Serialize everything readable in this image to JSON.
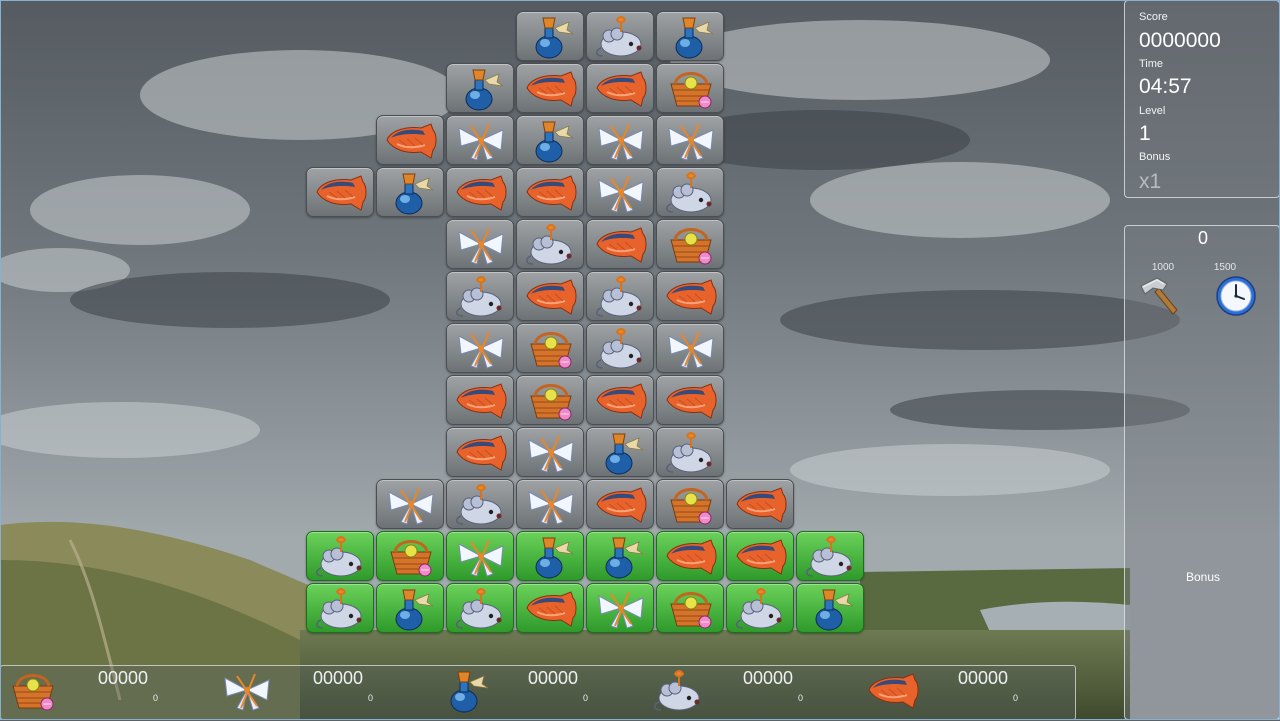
{
  "stats": {
    "score_label": "Score",
    "score_value": "0000000",
    "time_label": "Time",
    "time_value": "04:57",
    "level_label": "Level",
    "level_value": "1",
    "bonus_label": "Bonus",
    "bonus_value": "x1"
  },
  "tools": {
    "bonus_count": "0",
    "hammer": {
      "icon": "hammer-icon",
      "cost": "1000"
    },
    "clock": {
      "icon": "clock-icon",
      "cost": "1500"
    },
    "bonus_label": "Bonus"
  },
  "goals": [
    {
      "item": "basket",
      "score": "00000",
      "count": "0"
    },
    {
      "item": "bow",
      "score": "00000",
      "count": "0"
    },
    {
      "item": "bottle",
      "score": "00000",
      "count": "0"
    },
    {
      "item": "mouse",
      "score": "00000",
      "count": "0"
    },
    {
      "item": "fish",
      "score": "00000",
      "count": "0"
    }
  ],
  "board": {
    "columns": 8,
    "rows": 12,
    "cells": [
      [
        "",
        "",
        "",
        "bottle",
        "mouse",
        "bottle",
        "",
        ""
      ],
      [
        "",
        "",
        "bottle",
        "fish",
        "fish",
        "basket",
        "",
        ""
      ],
      [
        "",
        "fish",
        "bow",
        "bottle",
        "bow",
        "bow",
        "",
        ""
      ],
      [
        "fish",
        "bottle",
        "fish",
        "fish",
        "bow",
        "mouse",
        "",
        ""
      ],
      [
        "",
        "",
        "bow",
        "mouse",
        "fish",
        "basket",
        "",
        ""
      ],
      [
        "",
        "",
        "mouse",
        "fish",
        "mouse",
        "fish",
        "",
        ""
      ],
      [
        "",
        "",
        "bow",
        "basket",
        "mouse",
        "bow",
        "",
        ""
      ],
      [
        "",
        "",
        "fish",
        "basket",
        "fish",
        "fish",
        "",
        ""
      ],
      [
        "",
        "",
        "fish",
        "bow",
        "bottle",
        "mouse",
        "",
        ""
      ],
      [
        "",
        "bow",
        "mouse",
        "bow",
        "fish",
        "basket",
        "fish",
        ""
      ],
      [
        "mouse",
        "basket",
        "bow",
        "bottle",
        "bottle",
        "fish",
        "fish",
        "mouse"
      ],
      [
        "mouse",
        "bottle",
        "mouse",
        "fish",
        "bow",
        "basket",
        "mouse",
        "bottle"
      ]
    ],
    "green_rows": [
      10,
      11
    ]
  }
}
